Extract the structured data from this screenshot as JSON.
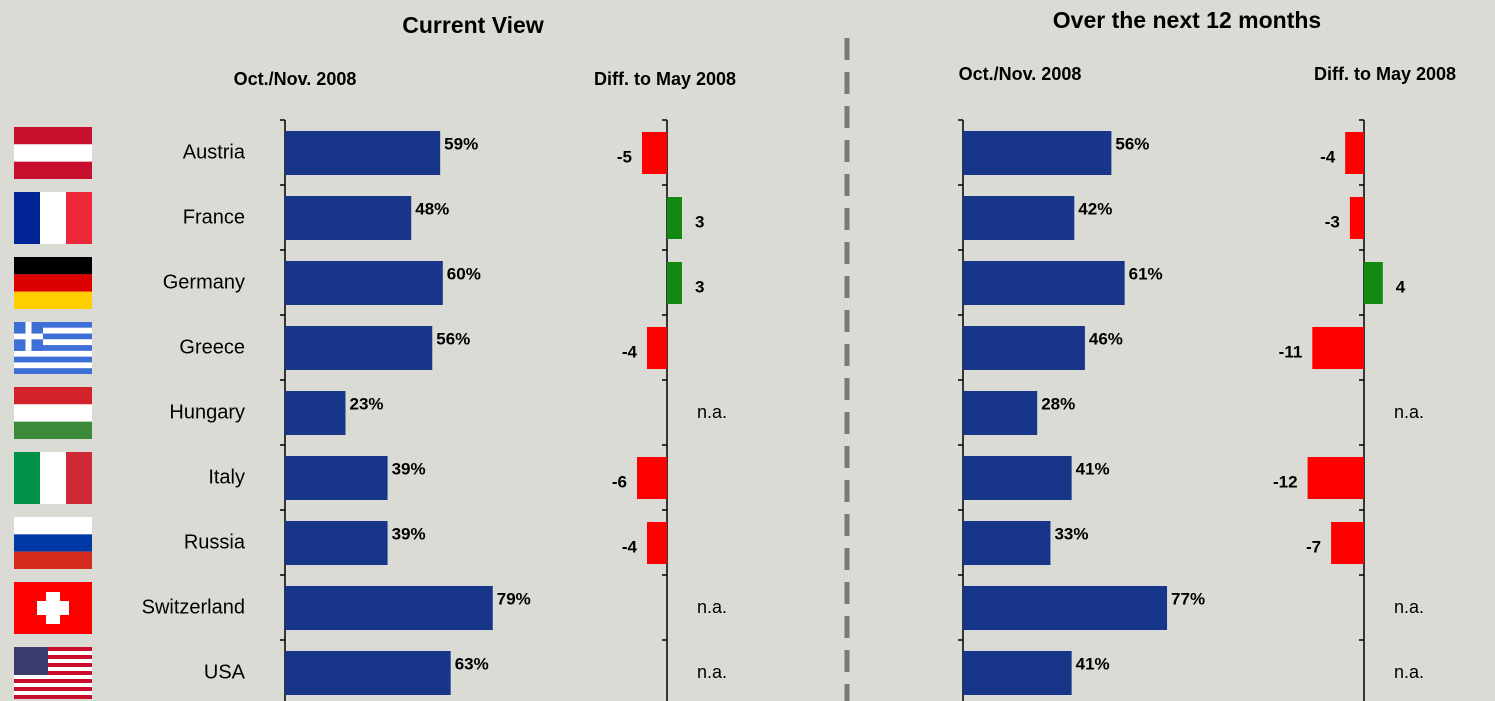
{
  "headings": [
    "Current View",
    "Over the next 12 months"
  ],
  "chart_data": [
    {
      "type": "bar",
      "orientation": "horizontal",
      "title": "Oct./Nov. 2008",
      "categories": [
        "Austria",
        "France",
        "Germany",
        "Greece",
        "Hungary",
        "Italy",
        "Russia",
        "Switzerland",
        "USA"
      ],
      "values": [
        59,
        48,
        60,
        56,
        23,
        39,
        39,
        79,
        63
      ],
      "value_labels": [
        "59%",
        "48%",
        "60%",
        "56%",
        "23%",
        "39%",
        "39%",
        "79%",
        "63%"
      ],
      "color": "#17368a",
      "xlim": [
        0,
        100
      ]
    },
    {
      "type": "diverging",
      "orientation": "horizontal",
      "title": "Diff. to May 2008",
      "values": [
        -5,
        3,
        3,
        -4,
        null,
        -6,
        -4,
        null,
        null
      ],
      "value_labels": [
        "-5",
        "3",
        "3",
        "-4",
        "n.a.",
        "-6",
        "-4",
        "n.a.",
        "n.a."
      ],
      "positive_color": "#128a12",
      "negative_color": "#ff0000",
      "xlim": [
        -20,
        20
      ]
    },
    {
      "type": "bar",
      "orientation": "horizontal",
      "title": "Oct./Nov. 2008",
      "values": [
        56,
        42,
        61,
        46,
        28,
        41,
        33,
        77,
        41
      ],
      "value_labels": [
        "56%",
        "42%",
        "61%",
        "46%",
        "28%",
        "41%",
        "33%",
        "77%",
        "41%"
      ],
      "color": "#17368a",
      "xlim": [
        0,
        100
      ]
    },
    {
      "type": "diverging",
      "orientation": "horizontal",
      "title": "Diff. to May 2008",
      "values": [
        -4,
        -3,
        4,
        -11,
        null,
        -12,
        -7,
        null,
        null
      ],
      "value_labels": [
        "-4",
        "-3",
        "4",
        "-11",
        "n.a.",
        "-12",
        "-7",
        "n.a.",
        "n.a."
      ],
      "positive_color": "#128a12",
      "negative_color": "#ff0000",
      "xlim": [
        -20,
        20
      ]
    }
  ]
}
